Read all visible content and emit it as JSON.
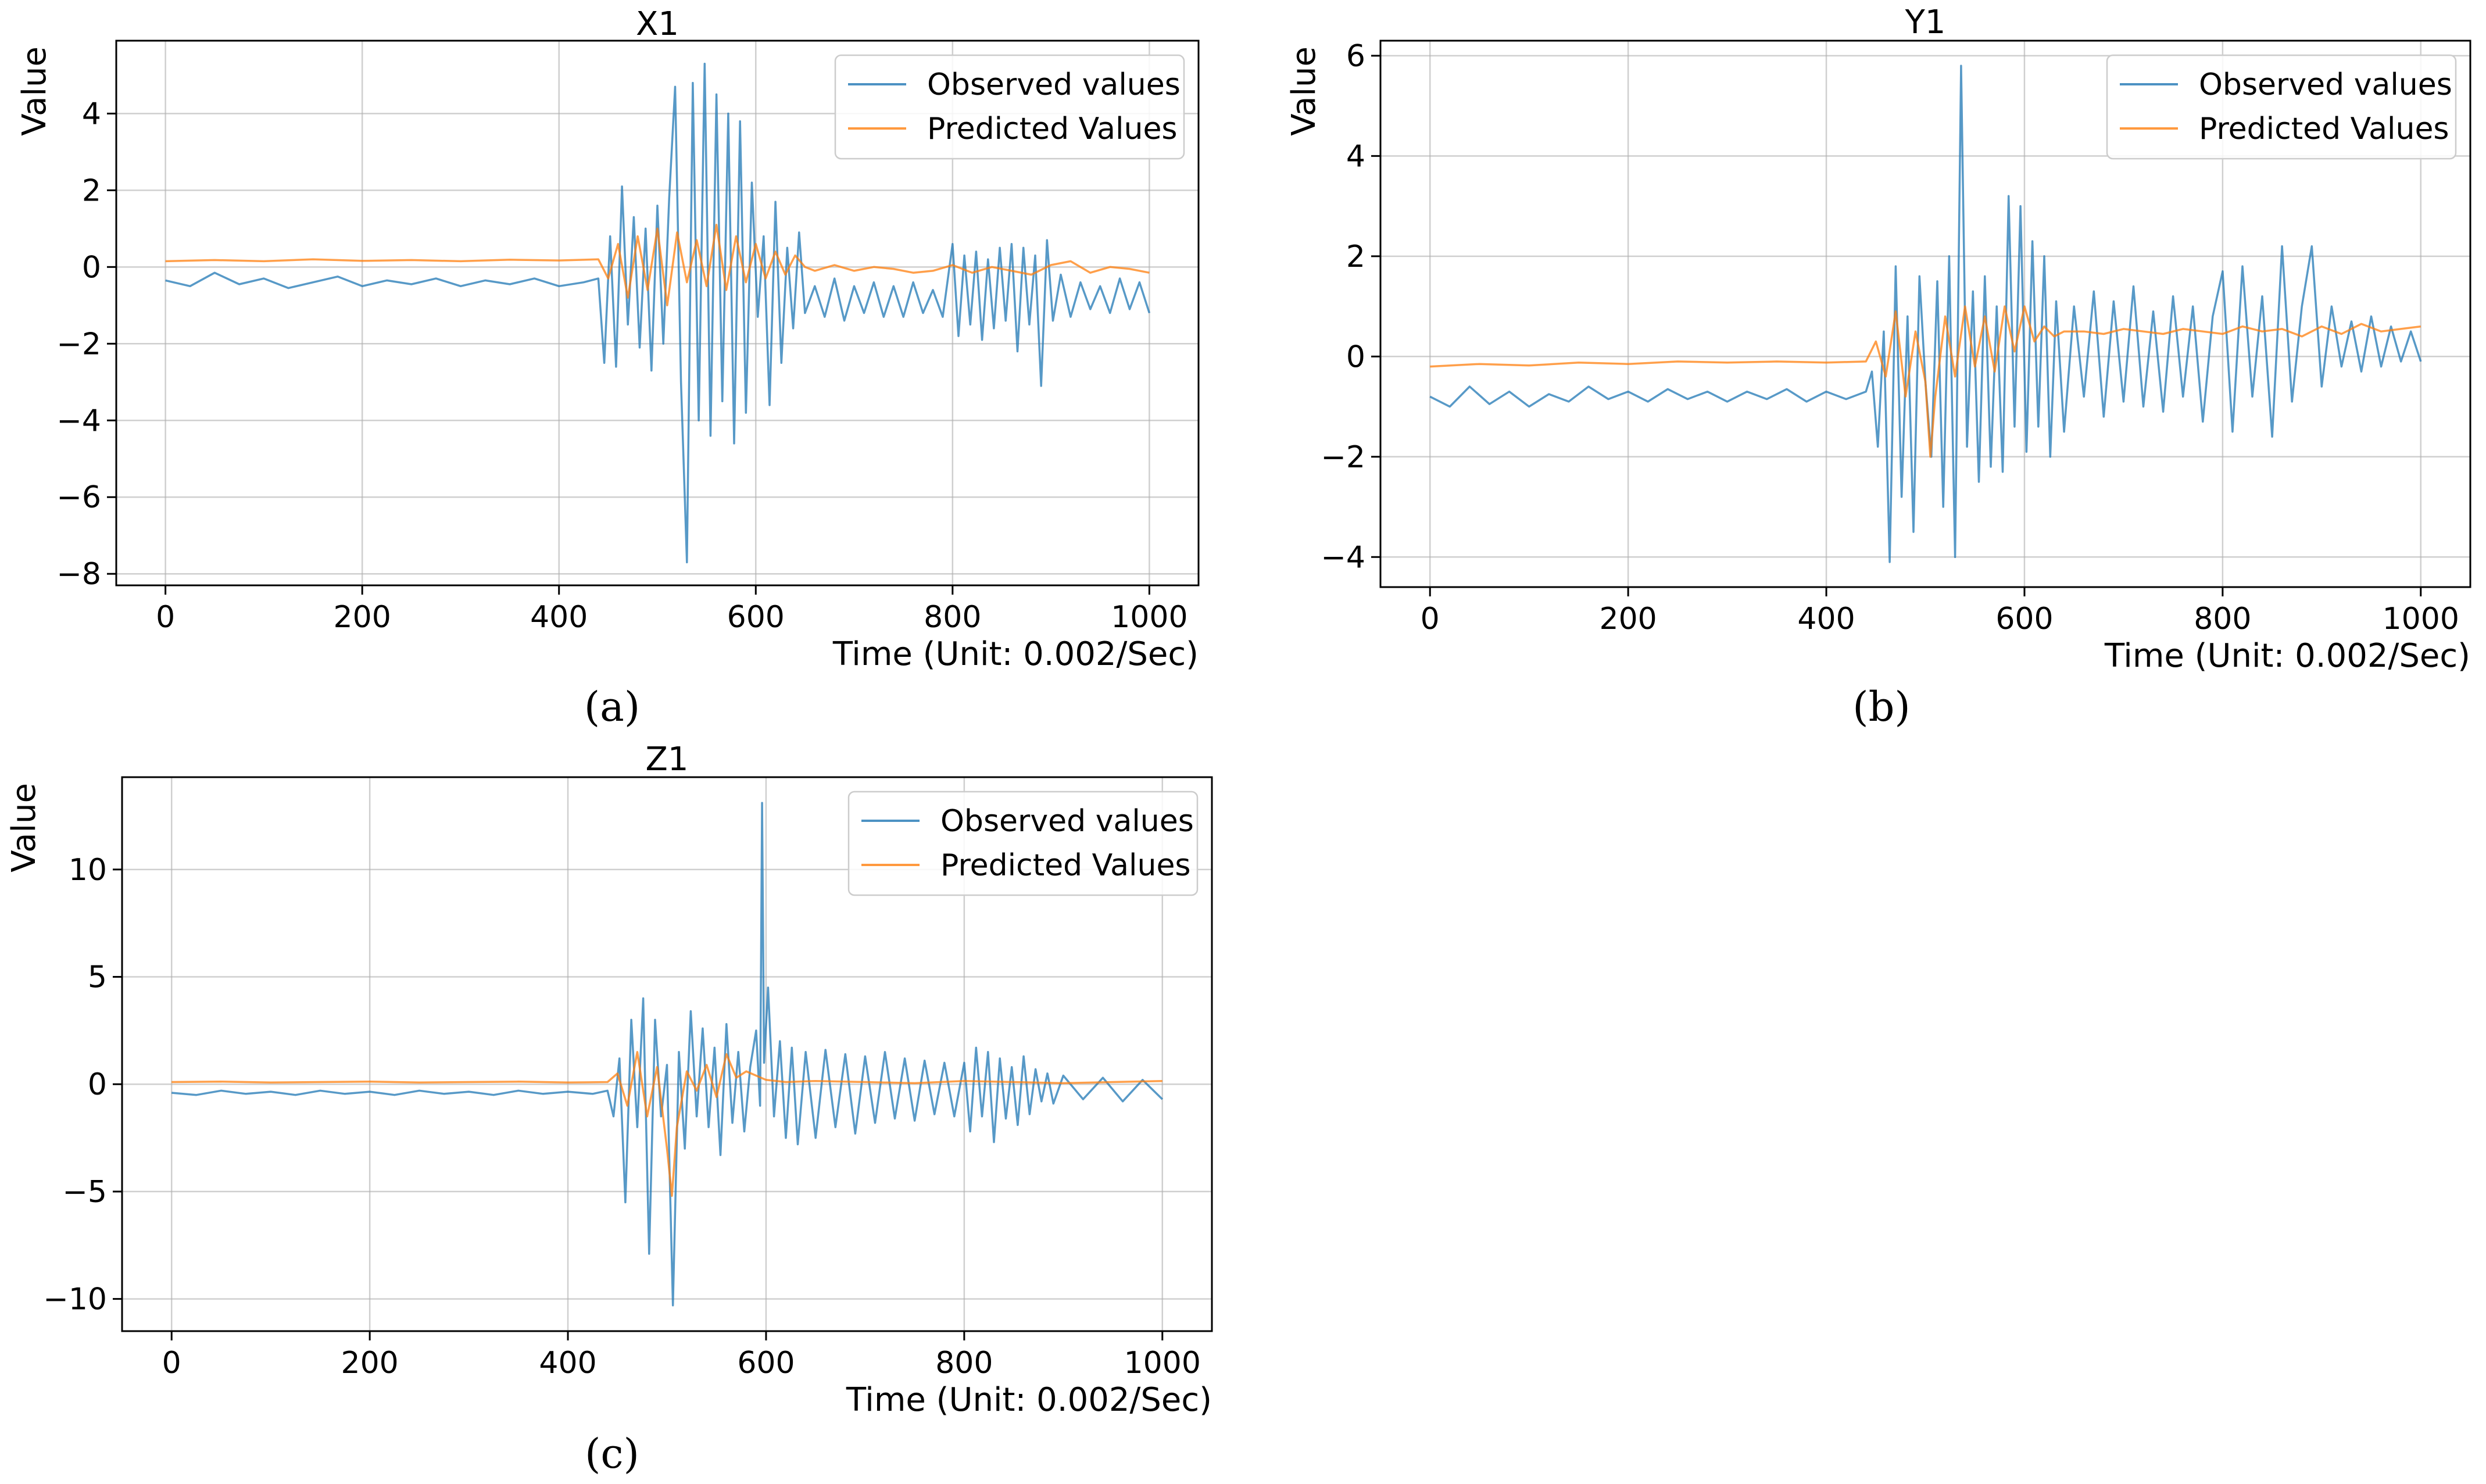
{
  "legend_labels": {
    "observed": "Observed values",
    "predicted": "Predicted Values"
  },
  "colors": {
    "observed": "#1f77b4",
    "predicted": "#ff7f0e",
    "grid": "#b0b0b0",
    "axis": "#000000"
  },
  "chart_data": [
    {
      "id": "x1",
      "type": "line",
      "title": "X1",
      "panel_label": "(a)",
      "xlabel": "Time (Unit: 0.002/Sec)",
      "ylabel": "Value",
      "xlim": [
        -50,
        1050
      ],
      "ylim": [
        -8.3,
        5.9
      ],
      "xticks": [
        0,
        200,
        400,
        600,
        800,
        1000
      ],
      "xtick_labels": [
        "0",
        "200",
        "400",
        "600",
        "800",
        "1000"
      ],
      "yticks": [
        -8,
        -6,
        -4,
        -2,
        0,
        2,
        4
      ],
      "ytick_labels": [
        "−8",
        "−6",
        "−4",
        "−2",
        "0",
        "2",
        "4"
      ],
      "grid": true,
      "legend": "top-right",
      "series": [
        {
          "name": "Observed values",
          "x": [
            0,
            25,
            50,
            75,
            100,
            125,
            150,
            175,
            200,
            225,
            250,
            275,
            300,
            325,
            350,
            375,
            400,
            425,
            440,
            446,
            452,
            458,
            464,
            470,
            476,
            482,
            488,
            494,
            500,
            506,
            512,
            518,
            524,
            530,
            536,
            542,
            548,
            554,
            560,
            566,
            572,
            578,
            584,
            590,
            596,
            602,
            608,
            614,
            620,
            626,
            632,
            638,
            644,
            650,
            660,
            670,
            680,
            690,
            700,
            710,
            720,
            730,
            740,
            750,
            760,
            770,
            780,
            790,
            800,
            806,
            812,
            818,
            824,
            830,
            836,
            842,
            848,
            854,
            860,
            866,
            872,
            878,
            884,
            890,
            896,
            902,
            910,
            920,
            930,
            940,
            950,
            960,
            970,
            980,
            990,
            1000
          ],
          "values": [
            -0.35,
            -0.5,
            -0.15,
            -0.45,
            -0.3,
            -0.55,
            -0.4,
            -0.25,
            -0.5,
            -0.35,
            -0.45,
            -0.3,
            -0.5,
            -0.35,
            -0.45,
            -0.3,
            -0.5,
            -0.4,
            -0.3,
            -2.5,
            0.8,
            -2.6,
            2.1,
            -1.5,
            1.3,
            -2.1,
            1.0,
            -2.7,
            1.6,
            -2.0,
            1.8,
            4.7,
            -3.0,
            -7.7,
            4.8,
            -4.0,
            5.3,
            -4.4,
            4.5,
            -3.5,
            4.0,
            -4.6,
            3.8,
            -3.8,
            2.2,
            -1.3,
            0.8,
            -3.6,
            1.7,
            -2.5,
            0.5,
            -1.6,
            0.9,
            -1.2,
            -0.5,
            -1.3,
            -0.3,
            -1.4,
            -0.5,
            -1.2,
            -0.4,
            -1.3,
            -0.5,
            -1.3,
            -0.4,
            -1.2,
            -0.6,
            -1.3,
            0.6,
            -1.8,
            0.3,
            -1.5,
            0.4,
            -1.9,
            0.2,
            -1.6,
            0.5,
            -1.4,
            0.6,
            -2.2,
            0.5,
            -1.5,
            0.3,
            -3.1,
            0.7,
            -1.4,
            -0.2,
            -1.3,
            -0.4,
            -1.1,
            -0.5,
            -1.2,
            -0.3,
            -1.1,
            -0.4,
            -1.2
          ]
        },
        {
          "name": "Predicted Values",
          "x": [
            0,
            50,
            100,
            150,
            200,
            250,
            300,
            350,
            400,
            440,
            450,
            460,
            470,
            480,
            490,
            500,
            510,
            520,
            530,
            540,
            550,
            560,
            570,
            580,
            590,
            600,
            610,
            620,
            630,
            640,
            650,
            660,
            680,
            700,
            720,
            740,
            760,
            780,
            800,
            820,
            840,
            860,
            880,
            900,
            920,
            940,
            960,
            980,
            1000
          ],
          "values": [
            0.15,
            0.18,
            0.15,
            0.2,
            0.16,
            0.18,
            0.15,
            0.19,
            0.17,
            0.2,
            -0.3,
            0.6,
            -0.8,
            0.8,
            -0.6,
            1.0,
            -1.0,
            0.9,
            -0.4,
            0.7,
            -0.5,
            1.1,
            -0.6,
            0.8,
            -0.4,
            0.6,
            -0.3,
            0.4,
            -0.2,
            0.3,
            0.0,
            -0.1,
            0.05,
            -0.1,
            0.0,
            -0.05,
            -0.15,
            -0.1,
            0.05,
            -0.15,
            0.0,
            -0.1,
            -0.2,
            0.05,
            0.15,
            -0.15,
            0.0,
            -0.05,
            -0.15
          ]
        }
      ]
    },
    {
      "id": "y1",
      "type": "line",
      "title": "Y1",
      "panel_label": "(b)",
      "xlabel": "Time (Unit: 0.002/Sec)",
      "ylabel": "Value",
      "xlim": [
        -50,
        1050
      ],
      "ylim": [
        -4.6,
        6.3
      ],
      "xticks": [
        0,
        200,
        400,
        600,
        800,
        1000
      ],
      "xtick_labels": [
        "0",
        "200",
        "400",
        "600",
        "800",
        "1000"
      ],
      "yticks": [
        -4,
        -2,
        0,
        2,
        4,
        6
      ],
      "ytick_labels": [
        "−4",
        "−2",
        "0",
        "2",
        "4",
        "6"
      ],
      "grid": true,
      "legend": "top-right",
      "series": [
        {
          "name": "Observed values",
          "x": [
            0,
            20,
            40,
            60,
            80,
            100,
            120,
            140,
            160,
            180,
            200,
            220,
            240,
            260,
            280,
            300,
            320,
            340,
            360,
            380,
            400,
            420,
            440,
            446,
            452,
            458,
            464,
            470,
            476,
            482,
            488,
            494,
            500,
            506,
            512,
            518,
            524,
            530,
            536,
            542,
            548,
            554,
            560,
            566,
            572,
            578,
            584,
            590,
            596,
            602,
            608,
            614,
            620,
            626,
            632,
            640,
            650,
            660,
            670,
            680,
            690,
            700,
            710,
            720,
            730,
            740,
            750,
            760,
            770,
            780,
            790,
            800,
            810,
            820,
            830,
            840,
            850,
            860,
            870,
            880,
            890,
            900,
            910,
            920,
            930,
            940,
            950,
            960,
            970,
            980,
            990,
            1000
          ],
          "values": [
            -0.8,
            -1.0,
            -0.6,
            -0.95,
            -0.7,
            -1.0,
            -0.75,
            -0.9,
            -0.6,
            -0.85,
            -0.7,
            -0.9,
            -0.65,
            -0.85,
            -0.7,
            -0.9,
            -0.7,
            -0.85,
            -0.65,
            -0.9,
            -0.7,
            -0.85,
            -0.7,
            -0.3,
            -1.8,
            0.5,
            -4.1,
            1.8,
            -2.8,
            0.8,
            -3.5,
            1.6,
            -0.5,
            -2.0,
            1.5,
            -3.0,
            2.0,
            -4.0,
            5.8,
            -1.8,
            1.3,
            -2.5,
            1.6,
            -2.2,
            1.0,
            -2.3,
            3.2,
            -1.4,
            3.0,
            -1.9,
            2.3,
            -1.4,
            2.0,
            -2.0,
            1.1,
            -1.5,
            1.0,
            -0.8,
            1.3,
            -1.2,
            1.1,
            -0.9,
            1.4,
            -1.0,
            0.9,
            -1.1,
            1.2,
            -0.8,
            1.0,
            -1.3,
            0.8,
            1.7,
            -1.5,
            1.8,
            -0.8,
            1.2,
            -1.6,
            2.2,
            -0.9,
            1.0,
            2.2,
            -0.6,
            1.0,
            -0.2,
            0.7,
            -0.3,
            0.8,
            -0.2,
            0.6,
            -0.1,
            0.5,
            -0.1
          ]
        },
        {
          "name": "Predicted Values",
          "x": [
            0,
            50,
            100,
            150,
            200,
            250,
            300,
            350,
            400,
            440,
            450,
            460,
            470,
            480,
            490,
            500,
            505,
            510,
            520,
            530,
            540,
            550,
            560,
            570,
            580,
            590,
            600,
            610,
            620,
            630,
            640,
            660,
            680,
            700,
            720,
            740,
            760,
            780,
            800,
            820,
            840,
            860,
            880,
            900,
            920,
            940,
            960,
            980,
            1000
          ],
          "values": [
            -0.2,
            -0.15,
            -0.18,
            -0.12,
            -0.15,
            -0.1,
            -0.12,
            -0.1,
            -0.12,
            -0.1,
            0.3,
            -0.4,
            0.9,
            -0.8,
            0.5,
            -0.5,
            -2.0,
            -0.8,
            0.8,
            -0.4,
            1.0,
            -0.2,
            0.8,
            -0.3,
            1.0,
            0.1,
            1.0,
            0.3,
            0.6,
            0.4,
            0.5,
            0.5,
            0.45,
            0.55,
            0.5,
            0.45,
            0.55,
            0.5,
            0.45,
            0.6,
            0.5,
            0.55,
            0.4,
            0.6,
            0.45,
            0.65,
            0.5,
            0.55,
            0.6
          ]
        }
      ]
    },
    {
      "id": "z1",
      "type": "line",
      "title": "Z1",
      "panel_label": "(c)",
      "xlabel": "Time (Unit: 0.002/Sec)",
      "ylabel": "Value",
      "xlim": [
        -50,
        1050
      ],
      "ylim": [
        -11.5,
        14.3
      ],
      "xticks": [
        0,
        200,
        400,
        600,
        800,
        1000
      ],
      "xtick_labels": [
        "0",
        "200",
        "400",
        "600",
        "800",
        "1000"
      ],
      "yticks": [
        -10,
        -5,
        0,
        5,
        10
      ],
      "ytick_labels": [
        "−10",
        "−5",
        "0",
        "5",
        "10"
      ],
      "grid": true,
      "legend": "top-right",
      "series": [
        {
          "name": "Observed values",
          "x": [
            0,
            25,
            50,
            75,
            100,
            125,
            150,
            175,
            200,
            225,
            250,
            275,
            300,
            325,
            350,
            375,
            400,
            425,
            440,
            446,
            452,
            458,
            464,
            470,
            476,
            482,
            488,
            494,
            500,
            506,
            512,
            518,
            524,
            530,
            536,
            542,
            548,
            554,
            560,
            566,
            572,
            578,
            584,
            590,
            594,
            596,
            598,
            602,
            608,
            614,
            620,
            626,
            632,
            640,
            650,
            660,
            670,
            680,
            690,
            700,
            710,
            720,
            730,
            740,
            750,
            760,
            770,
            780,
            790,
            800,
            806,
            812,
            818,
            824,
            830,
            836,
            842,
            848,
            854,
            860,
            866,
            872,
            878,
            884,
            890,
            900,
            920,
            940,
            960,
            980,
            1000
          ],
          "values": [
            -0.4,
            -0.5,
            -0.3,
            -0.45,
            -0.35,
            -0.5,
            -0.3,
            -0.45,
            -0.35,
            -0.5,
            -0.3,
            -0.45,
            -0.35,
            -0.5,
            -0.3,
            -0.45,
            -0.35,
            -0.45,
            -0.3,
            -1.5,
            1.2,
            -5.5,
            3.0,
            -2.0,
            4.0,
            -7.9,
            3.0,
            -1.5,
            0.9,
            -10.3,
            1.5,
            -3.0,
            3.4,
            -1.5,
            2.6,
            -2.0,
            1.7,
            -3.3,
            2.8,
            -1.8,
            1.5,
            -2.2,
            0.8,
            2.5,
            -1.0,
            13.1,
            1.0,
            4.5,
            -1.5,
            2.0,
            -2.5,
            1.7,
            -2.8,
            1.5,
            -2.5,
            1.6,
            -2.0,
            1.4,
            -2.3,
            1.3,
            -1.8,
            1.5,
            -1.6,
            1.2,
            -1.7,
            1.1,
            -1.4,
            1.0,
            -1.5,
            1.0,
            -2.2,
            1.7,
            -1.5,
            1.5,
            -2.7,
            1.2,
            -1.6,
            0.8,
            -1.9,
            1.3,
            -1.4,
            0.7,
            -0.8,
            0.5,
            -0.9,
            0.4,
            -0.7,
            0.3,
            -0.8,
            0.2,
            -0.7
          ]
        },
        {
          "name": "Predicted Values",
          "x": [
            0,
            50,
            100,
            150,
            200,
            250,
            300,
            350,
            400,
            440,
            450,
            460,
            470,
            480,
            490,
            500,
            505,
            510,
            520,
            530,
            540,
            550,
            560,
            570,
            580,
            600,
            620,
            650,
            700,
            750,
            800,
            850,
            900,
            950,
            1000
          ],
          "values": [
            0.1,
            0.12,
            0.08,
            0.1,
            0.12,
            0.08,
            0.1,
            0.12,
            0.08,
            0.1,
            0.5,
            -1.0,
            1.5,
            -1.5,
            0.8,
            -3.0,
            -5.2,
            -2.0,
            0.6,
            -0.3,
            0.9,
            -0.6,
            1.4,
            0.3,
            0.6,
            0.2,
            0.1,
            0.15,
            0.1,
            0.05,
            0.15,
            0.1,
            0.05,
            0.1,
            0.15
          ]
        }
      ]
    }
  ]
}
